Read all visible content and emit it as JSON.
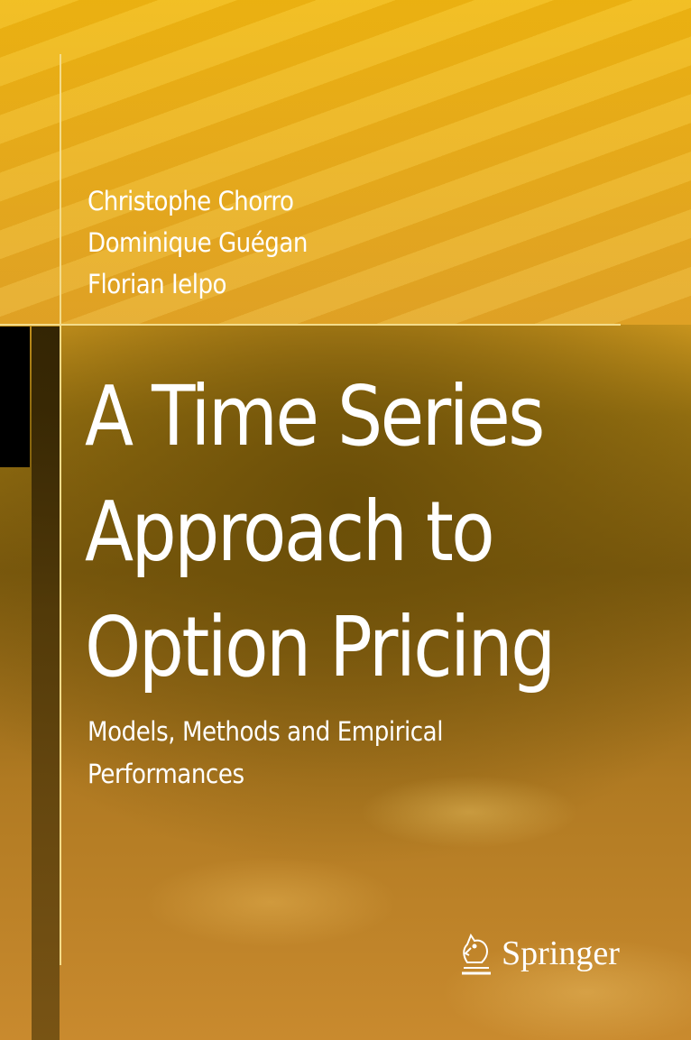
{
  "cover": {
    "authors": [
      "Christophe Chorro",
      "Dominique Guégan",
      "Florian Ielpo"
    ],
    "title_lines": [
      "A Time Series",
      "Approach to",
      "Option Pricing"
    ],
    "subtitle_lines": [
      "Models, Methods and Empirical",
      "Performances"
    ],
    "publisher": "Springer",
    "publisher_icon": "knight-horse-logo",
    "colors": {
      "background": "#e4a824",
      "text": "#ffffff",
      "accent_bar": "#000000",
      "rule": "#f4dc8a"
    }
  }
}
